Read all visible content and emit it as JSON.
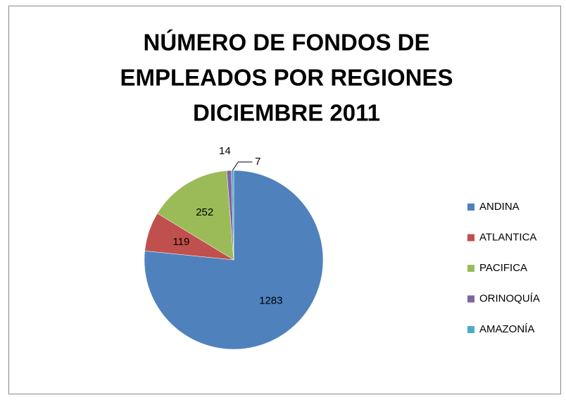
{
  "chart_data": {
    "type": "pie",
    "title": [
      "NÚMERO DE FONDOS DE",
      "EMPLEADOS POR REGIONES",
      "DICIEMBRE 2011"
    ],
    "categories": [
      "ANDINA",
      "ATLANTICA",
      "PACIFICA",
      "ORINOQUÍA",
      "AMAZONÍA"
    ],
    "values": [
      1283,
      119,
      252,
      14,
      7
    ],
    "colors": [
      "#4f81bd",
      "#c0504d",
      "#9bbb59",
      "#8064a2",
      "#4bacc6"
    ],
    "legend": "right"
  }
}
